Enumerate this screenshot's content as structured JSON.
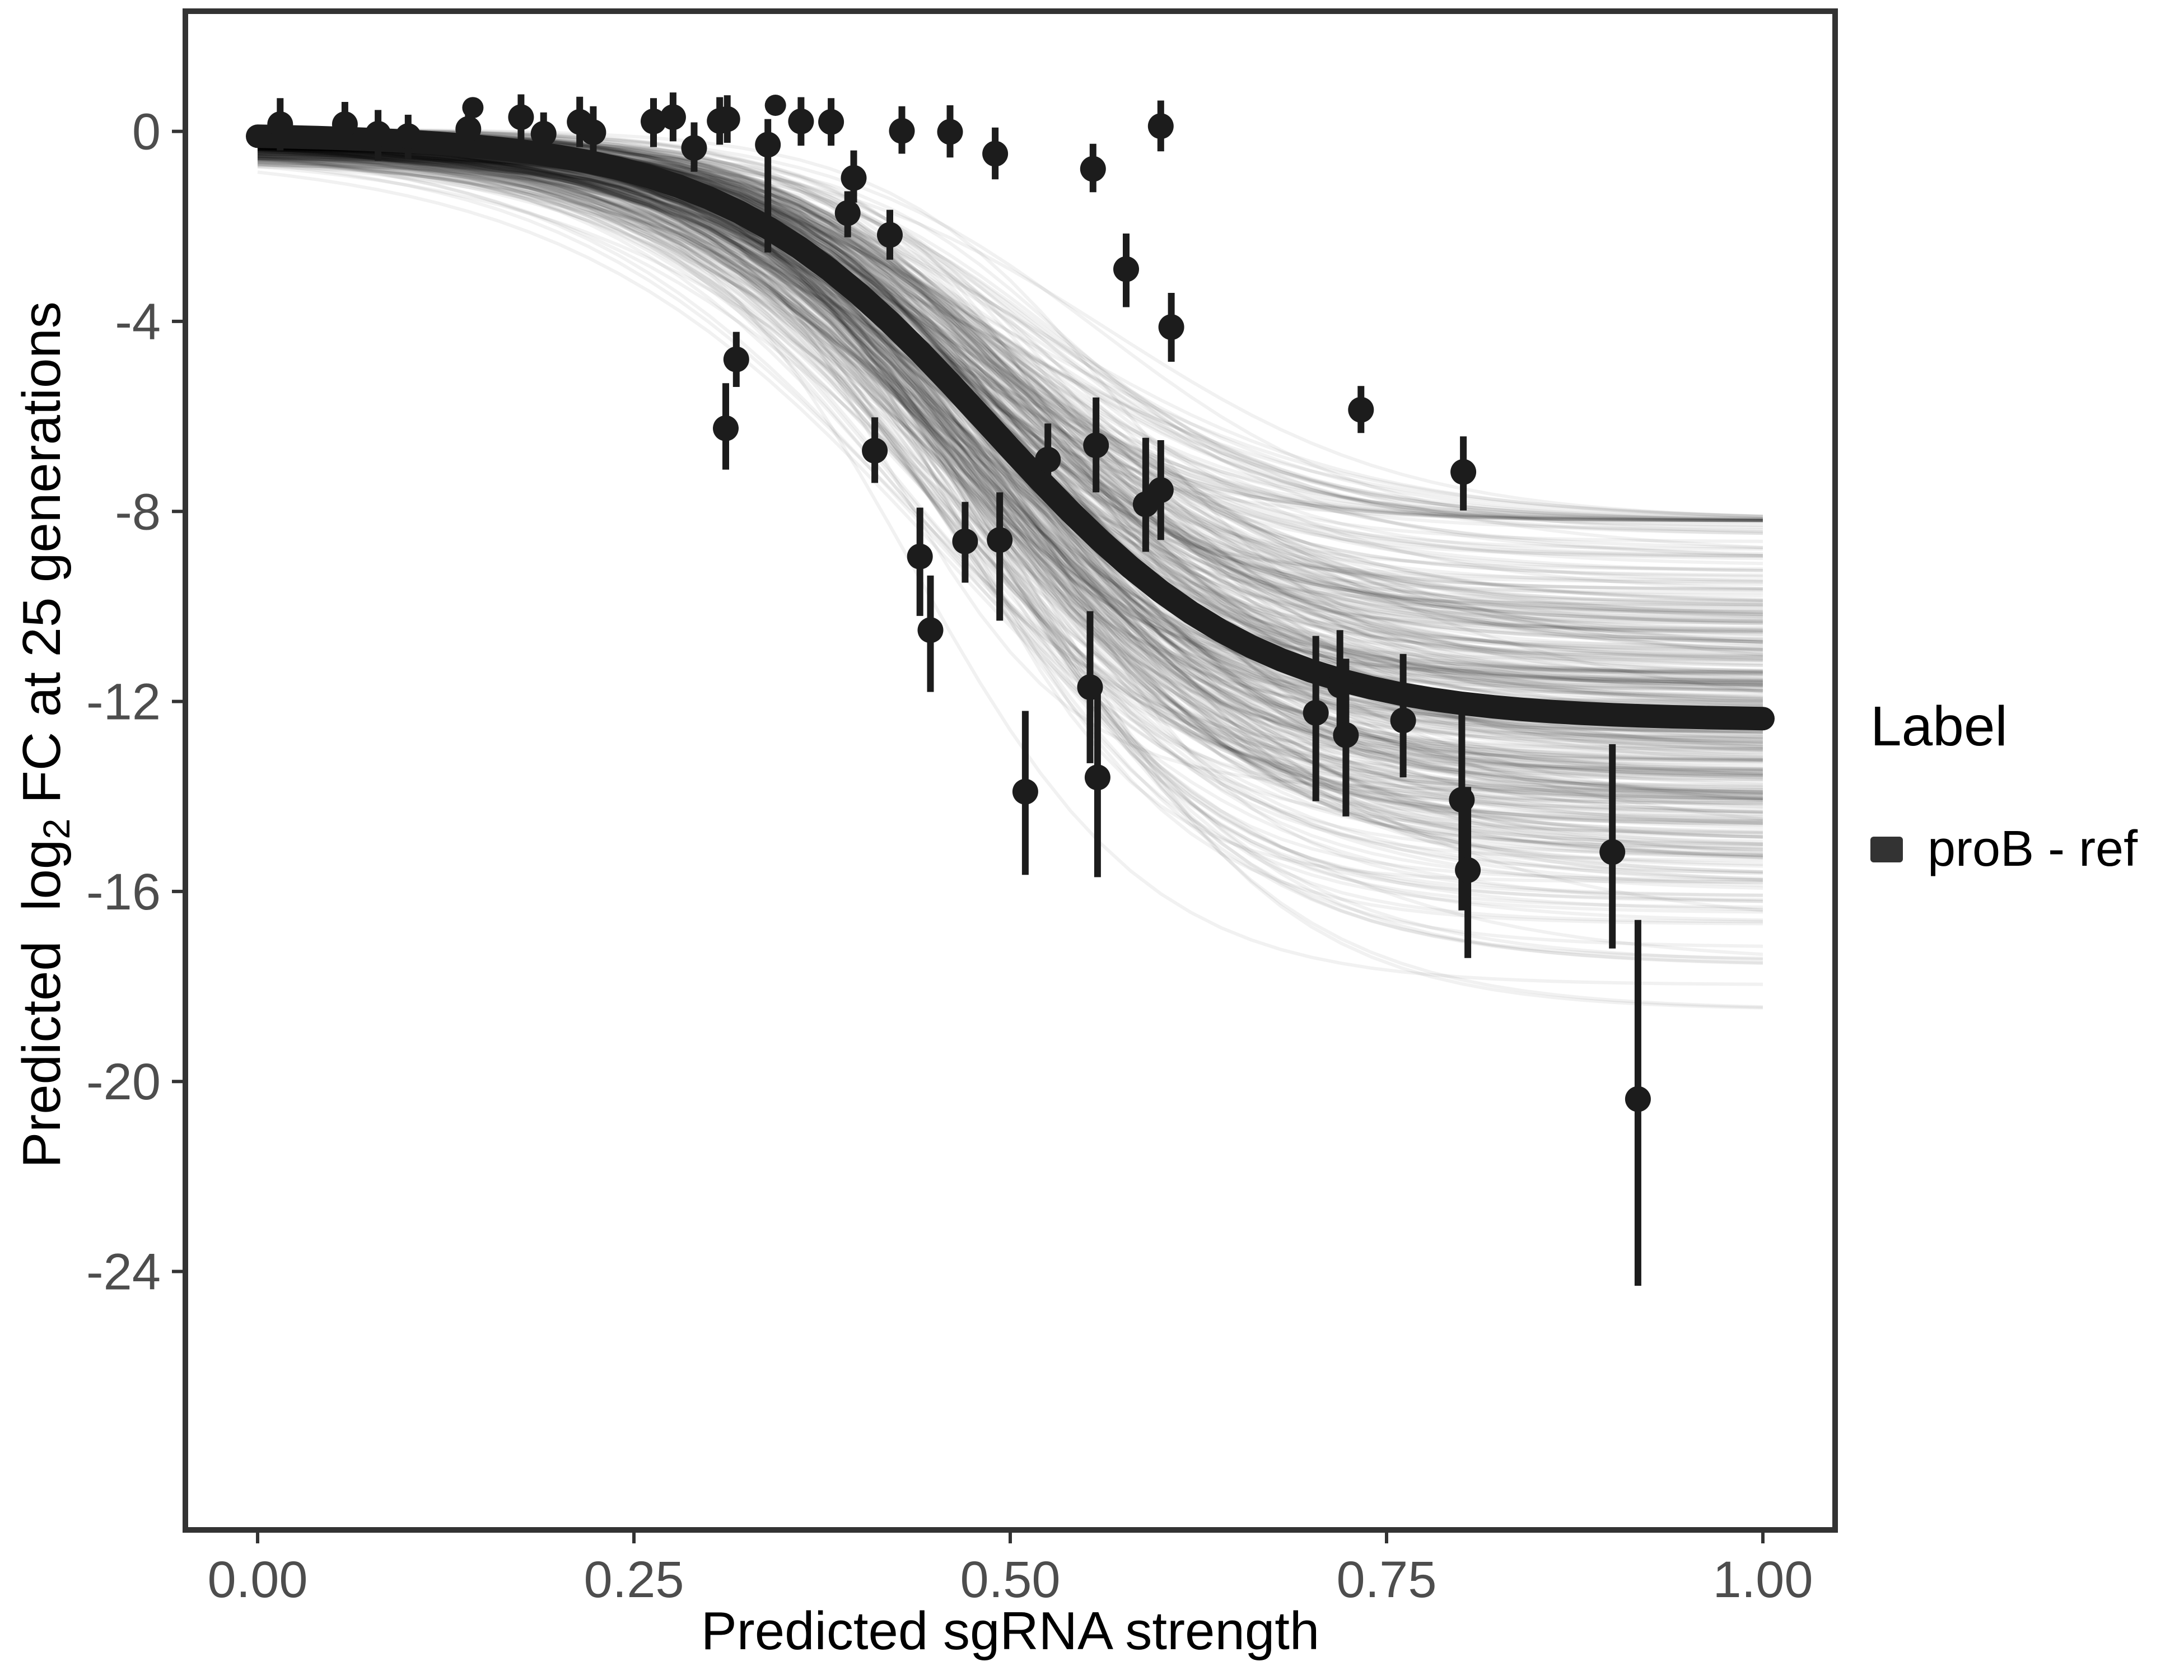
{
  "page": {
    "background": "#ffffff"
  },
  "chart_data": {
    "type": "scatter",
    "subtype": "sigmoid-fit-with-posterior-draws-and-errorbars",
    "title": "",
    "xlabel": "Predicted sgRNA strength",
    "ylabel": "Predicted log2 FC at 25 generations",
    "ylabel_parts": {
      "pre": "Predicted  log",
      "sub": "2",
      "post": " FC at 25 generations"
    },
    "x_tick_labels": [
      "0.00",
      "0.25",
      "0.50",
      "0.75",
      "1.00"
    ],
    "x_tick_values": [
      0,
      0.25,
      0.5,
      0.75,
      1.0
    ],
    "y_tick_labels": [
      "0",
      "-4",
      "-8",
      "-12",
      "-16",
      "-20",
      "-24"
    ],
    "y_tick_values": [
      0,
      -4,
      -8,
      -12,
      -16,
      -20,
      -24
    ],
    "xlim": [
      -0.048,
      1.048
    ],
    "ylim": [
      -29.44,
      2.53
    ],
    "grid": false,
    "colors": {
      "axis": "#333333",
      "tick_text": "#4d4d4d",
      "curve": "#1c1c1c",
      "point": "#1c1c1c",
      "draw": "rgba(0,0,0,0.055)"
    },
    "legend": {
      "title": "Label",
      "position": "right",
      "items": [
        {
          "label": "proB - ref",
          "color": "#333333"
        }
      ]
    },
    "fitted_curve": {
      "model": "sigmoid",
      "upper": -0.05,
      "lower": -12.4,
      "midpoint": 0.487,
      "slope": 11.2,
      "x_range": [
        0,
        1
      ]
    },
    "posterior_draws": {
      "count": 420,
      "seed": 42,
      "midpoint_mean": 0.487,
      "midpoint_sd": 0.03,
      "slope_mean": 11.2,
      "slope_sd": 1.8,
      "slope_min": 6.5,
      "slope_max": 16,
      "lower_mean": -12.5,
      "lower_sd": 2.3,
      "lower_min": -18.5,
      "lower_max": -8.2,
      "upper_mean": -0.18,
      "upper_sd": 0.22,
      "upper_min": -0.9,
      "upper_max": 0.05
    },
    "points": [
      {
        "x": 0.015,
        "y": 0.15,
        "lo": -0.4,
        "hi": 0.7
      },
      {
        "x": 0.058,
        "y": 0.15,
        "lo": -0.35,
        "hi": 0.62
      },
      {
        "x": 0.08,
        "y": -0.05,
        "lo": -0.62,
        "hi": 0.45
      },
      {
        "x": 0.1,
        "y": -0.1,
        "lo": -0.58,
        "hi": 0.35
      },
      {
        "x": 0.143,
        "y": 0.5,
        "lo": 0.5,
        "hi": 0.5
      },
      {
        "x": 0.14,
        "y": 0.05,
        "lo": -0.5,
        "hi": 0.58
      },
      {
        "x": 0.175,
        "y": 0.3,
        "lo": -0.18,
        "hi": 0.78
      },
      {
        "x": 0.19,
        "y": -0.05,
        "lo": -0.52,
        "hi": 0.4
      },
      {
        "x": 0.214,
        "y": 0.2,
        "lo": -0.33,
        "hi": 0.73
      },
      {
        "x": 0.223,
        "y": -0.02,
        "lo": -0.49,
        "hi": 0.53
      },
      {
        "x": 0.263,
        "y": 0.21,
        "lo": -0.33,
        "hi": 0.7
      },
      {
        "x": 0.276,
        "y": 0.3,
        "lo": -0.21,
        "hi": 0.82
      },
      {
        "x": 0.29,
        "y": -0.35,
        "lo": -0.85,
        "hi": 0.19
      },
      {
        "x": 0.307,
        "y": 0.22,
        "lo": -0.28,
        "hi": 0.72
      },
      {
        "x": 0.312,
        "y": 0.26,
        "lo": -0.24,
        "hi": 0.76
      },
      {
        "x": 0.339,
        "y": -0.28,
        "lo": -2.55,
        "hi": 0.26
      },
      {
        "x": 0.344,
        "y": 0.55,
        "lo": 0.55,
        "hi": 0.55
      },
      {
        "x": 0.361,
        "y": 0.21,
        "lo": -0.3,
        "hi": 0.72
      },
      {
        "x": 0.381,
        "y": 0.2,
        "lo": -0.3,
        "hi": 0.7
      },
      {
        "x": 0.392,
        "y": -1.72,
        "lo": -2.23,
        "hi": -1.26
      },
      {
        "x": 0.396,
        "y": -0.98,
        "lo": -1.5,
        "hi": -0.4
      },
      {
        "x": 0.42,
        "y": -2.18,
        "lo": -2.7,
        "hi": -1.65
      },
      {
        "x": 0.428,
        "y": 0.01,
        "lo": -0.47,
        "hi": 0.53
      },
      {
        "x": 0.46,
        "y": -0.01,
        "lo": -0.55,
        "hi": 0.55
      },
      {
        "x": 0.49,
        "y": -0.47,
        "lo": -1.01,
        "hi": 0.08
      },
      {
        "x": 0.555,
        "y": -0.79,
        "lo": -1.28,
        "hi": -0.26
      },
      {
        "x": 0.6,
        "y": 0.11,
        "lo": -0.42,
        "hi": 0.65
      },
      {
        "x": 0.318,
        "y": -4.8,
        "lo": -5.38,
        "hi": -4.22
      },
      {
        "x": 0.311,
        "y": -6.25,
        "lo": -7.12,
        "hi": -5.3
      },
      {
        "x": 0.41,
        "y": -6.72,
        "lo": -7.4,
        "hi": -6.02
      },
      {
        "x": 0.44,
        "y": -8.95,
        "lo": -10.2,
        "hi": -7.92
      },
      {
        "x": 0.447,
        "y": -10.5,
        "lo": -11.8,
        "hi": -9.35
      },
      {
        "x": 0.47,
        "y": -8.63,
        "lo": -9.5,
        "hi": -7.8
      },
      {
        "x": 0.493,
        "y": -8.6,
        "lo": -10.3,
        "hi": -7.6
      },
      {
        "x": 0.525,
        "y": -6.91,
        "lo": -7.69,
        "hi": -6.15
      },
      {
        "x": 0.557,
        "y": -6.61,
        "lo": -7.6,
        "hi": -5.6
      },
      {
        "x": 0.59,
        "y": -7.85,
        "lo": -8.85,
        "hi": -6.45
      },
      {
        "x": 0.6,
        "y": -7.55,
        "lo": -8.6,
        "hi": -6.5
      },
      {
        "x": 0.51,
        "y": -13.9,
        "lo": -15.65,
        "hi": -12.2
      },
      {
        "x": 0.553,
        "y": -11.7,
        "lo": -13.3,
        "hi": -10.1
      },
      {
        "x": 0.558,
        "y": -13.6,
        "lo": -15.7,
        "hi": -11.6
      },
      {
        "x": 0.577,
        "y": -2.9,
        "lo": -3.7,
        "hi": -2.15
      },
      {
        "x": 0.607,
        "y": -4.12,
        "lo": -4.85,
        "hi": -3.4
      },
      {
        "x": 0.733,
        "y": -5.86,
        "lo": -6.35,
        "hi": -5.36
      },
      {
        "x": 0.801,
        "y": -7.17,
        "lo": -7.98,
        "hi": -6.42
      },
      {
        "x": 0.703,
        "y": -12.24,
        "lo": -14.1,
        "hi": -10.62
      },
      {
        "x": 0.719,
        "y": -11.66,
        "lo": -12.8,
        "hi": -10.5
      },
      {
        "x": 0.723,
        "y": -12.71,
        "lo": -14.42,
        "hi": -11.1
      },
      {
        "x": 0.761,
        "y": -12.4,
        "lo": -13.6,
        "hi": -11.0
      },
      {
        "x": 0.8,
        "y": -14.07,
        "lo": -16.4,
        "hi": -12.1
      },
      {
        "x": 0.804,
        "y": -15.55,
        "lo": -17.4,
        "hi": -13.8
      },
      {
        "x": 0.9,
        "y": -15.17,
        "lo": -17.2,
        "hi": -12.9
      },
      {
        "x": 0.917,
        "y": -20.37,
        "lo": -24.3,
        "hi": -16.6
      }
    ]
  }
}
